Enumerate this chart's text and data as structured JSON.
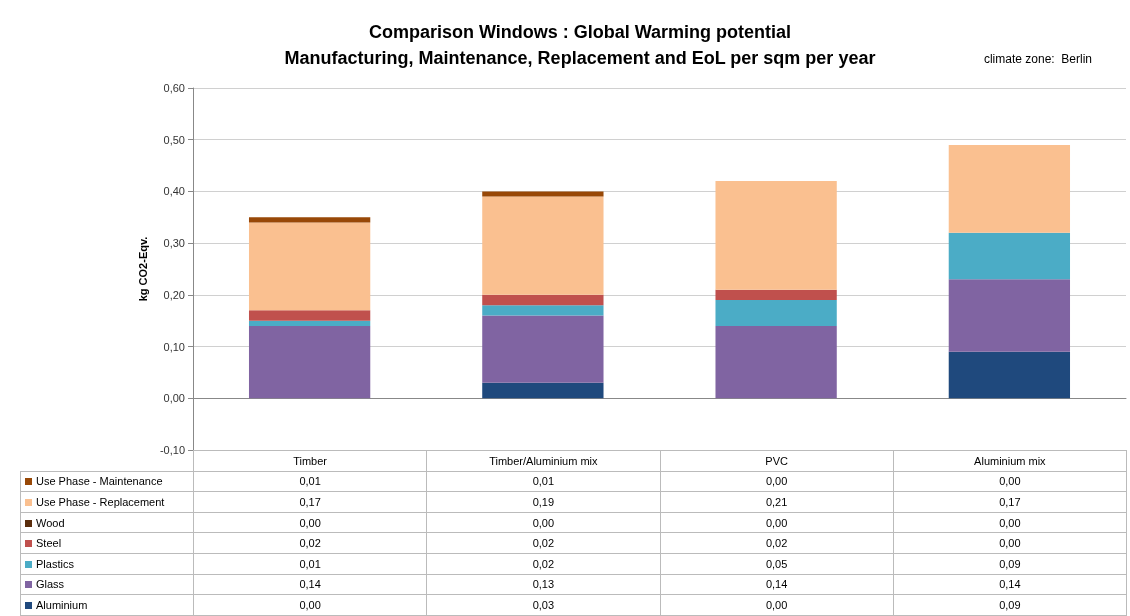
{
  "chart_data": {
    "type": "bar",
    "title": "Comparison Windows : Global Warming potential",
    "subtitle": "Manufacturing, Maintenance, Replacement and EoL per sqm per year",
    "ylabel": "kg CO2-Eqv.",
    "annotations": [
      "climate zone:  Berlin"
    ],
    "categories": [
      "Timber",
      "Timber/Aluminium mix",
      "PVC",
      "Aluminium mix"
    ],
    "stacked": true,
    "legend": "bottom left",
    "grid": "y",
    "ylim": [
      -0.1,
      0.6
    ],
    "yticks": [
      {
        "value": -0.1,
        "label": "-0,10"
      },
      {
        "value": 0,
        "label": "0,00"
      },
      {
        "value": 0.1,
        "label": "0,10"
      },
      {
        "value": 0.2,
        "label": "0,20"
      },
      {
        "value": 0.3,
        "label": "0,30"
      },
      {
        "value": 0.4,
        "label": "0,40"
      },
      {
        "value": 0.5,
        "label": "0,50"
      },
      {
        "value": 0.6,
        "label": "0,60"
      }
    ],
    "series": [
      {
        "name": "Aluminium",
        "color": "#1f497d",
        "values": [
          0.0,
          0.03,
          0.0,
          0.09
        ],
        "value_labels": [
          "0,00",
          "0,03",
          "0,00",
          "0,09"
        ]
      },
      {
        "name": "Glass",
        "color": "#8064a2",
        "values": [
          0.14,
          0.13,
          0.14,
          0.14
        ],
        "value_labels": [
          "0,14",
          "0,13",
          "0,14",
          "0,14"
        ]
      },
      {
        "name": "Plastics",
        "color": "#4bacc6",
        "values": [
          0.01,
          0.02,
          0.05,
          0.09
        ],
        "value_labels": [
          "0,01",
          "0,02",
          "0,05",
          "0,09"
        ]
      },
      {
        "name": "Steel",
        "color": "#c0504d",
        "values": [
          0.02,
          0.02,
          0.02,
          0.0
        ],
        "value_labels": [
          "0,02",
          "0,02",
          "0,02",
          "0,00"
        ]
      },
      {
        "name": "Wood",
        "color": "#5a2d0c",
        "values": [
          0.0,
          0.0,
          0.0,
          0.0
        ],
        "value_labels": [
          "0,00",
          "0,00",
          "0,00",
          "0,00"
        ]
      },
      {
        "name": "Use Phase - Replacement",
        "color": "#fac090",
        "values": [
          0.17,
          0.19,
          0.21,
          0.17
        ],
        "value_labels": [
          "0,17",
          "0,19",
          "0,21",
          "0,17"
        ]
      },
      {
        "name": "Use Phase - Maintenance",
        "color": "#984807",
        "values": [
          0.01,
          0.01,
          0.0,
          0.0
        ],
        "value_labels": [
          "0,01",
          "0,01",
          "0,00",
          "0,00"
        ]
      }
    ]
  }
}
